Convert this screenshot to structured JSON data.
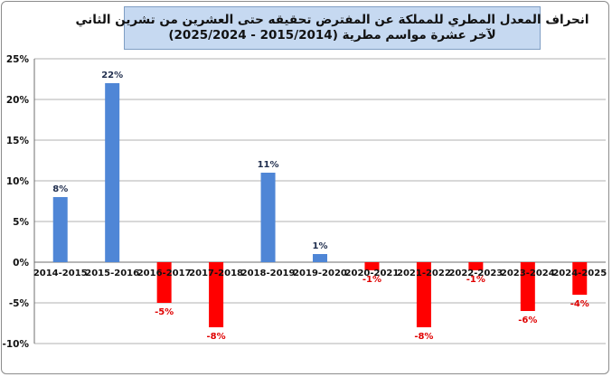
{
  "chart_data": {
    "type": "bar",
    "title": "انحراف المعدل المطري للمملكة عن المفترض تحقيقه حتى العشرين من تشرين الثاني",
    "subtitle": "لآخر عشرة مواسم مطرية (2015/2014 - 2025/2024)",
    "categories": [
      "2014-2015",
      "2015-2016",
      "2016-2017",
      "2017-2018",
      "2018-2019",
      "2019-2020",
      "2020-2021",
      "2021-2022",
      "2022-2023",
      "2023-2024",
      "2024-2025"
    ],
    "values": [
      8,
      22,
      -5,
      -8,
      11,
      1,
      -1,
      -8,
      -1,
      -6,
      -4
    ],
    "value_labels": [
      "8%",
      "22%",
      "-5%",
      "-8%",
      "11%",
      "1%",
      "-1%",
      "-8%",
      "-1%",
      "-6%",
      "-4%"
    ],
    "ylim": [
      -10,
      25
    ],
    "yticks": [
      -10,
      -5,
      0,
      5,
      10,
      15,
      20,
      25
    ],
    "ytick_labels": [
      "-10%",
      "-5%",
      "0%",
      "5%",
      "10%",
      "15%",
      "20%",
      "25%"
    ],
    "xlabel": "",
    "ylabel": "",
    "grid": true,
    "colors": {
      "positive": "#4f86d6",
      "negative": "#ff0000",
      "positive_label": "#1f2d4d",
      "negative_label": "#e00000",
      "grid": "#b0b0b0",
      "title_background": "#c6d9f1"
    }
  }
}
